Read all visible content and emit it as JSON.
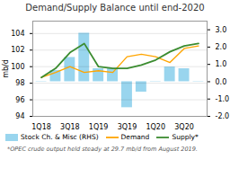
{
  "chart_data": {
    "type": "bar",
    "title": "Demand/Supply Balance until end-2020",
    "categories": [
      "1Q18",
      null,
      "3Q18",
      null,
      "1Q19",
      null,
      "3Q19",
      null,
      "1Q20",
      null,
      "3Q20",
      null
    ],
    "series": [
      {
        "name": "Stock Ch. & Misc (RHS)",
        "type": "bar",
        "axis": "y2",
        "color": "#87CEEB",
        "values": [
          0.02,
          0.65,
          1.4,
          2.8,
          0.75,
          0.75,
          -1.5,
          -0.6,
          0.02,
          0.85,
          0.75,
          0.02
        ]
      },
      {
        "name": "Demand",
        "type": "line",
        "color": "#FFA500",
        "values": [
          98.7,
          99.3,
          100.0,
          99.3,
          99.5,
          99.3,
          101.2,
          101.5,
          101.2,
          100.5,
          102.2,
          102.5
        ]
      },
      {
        "name": "Supply*",
        "type": "line",
        "color": "#3B8C30",
        "values": [
          98.7,
          99.8,
          101.7,
          102.8,
          100.0,
          99.8,
          99.8,
          100.2,
          100.8,
          101.8,
          102.5,
          102.8
        ]
      }
    ],
    "ylabel": "mb/d",
    "ylim": [
      94,
      105.5
    ],
    "yticks": [
      94,
      96,
      98,
      100,
      102,
      104
    ],
    "y2lim": [
      -2.0,
      3.5
    ],
    "y2ticks": [
      {
        "value": -2.0,
        "label": "-2.0"
      },
      {
        "value": -1.0,
        "label": "-1.0"
      },
      {
        "value": 0.0,
        "label": "0.0"
      },
      {
        "value": 1.0,
        "label": "1.0"
      },
      {
        "value": 2.0,
        "label": "2.0"
      },
      {
        "value": 3.0,
        "label": "3.0"
      }
    ],
    "grid": true,
    "legend": "lower left",
    "footnote": "*OPEC crude output held steady at 29.7 mb/d from August 2019."
  }
}
